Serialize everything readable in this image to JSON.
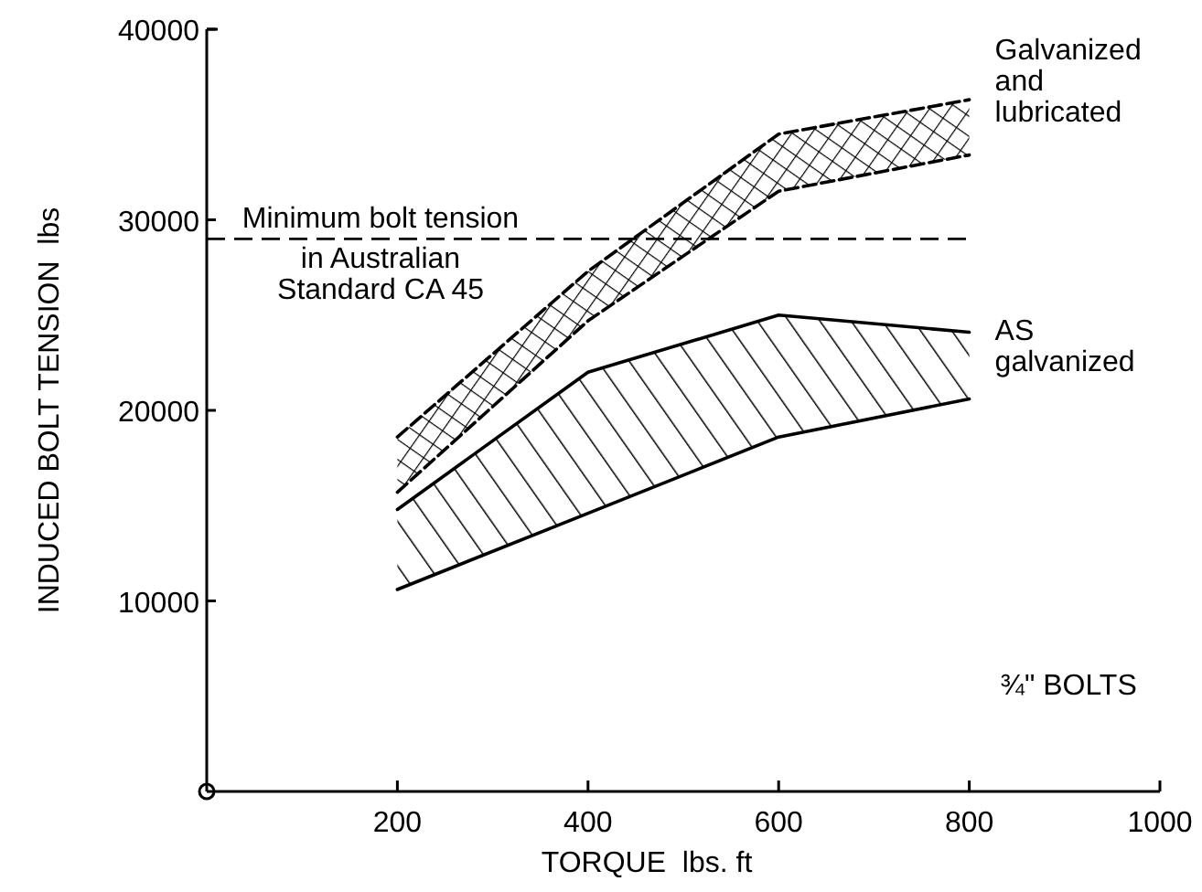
{
  "chart_data": {
    "type": "line",
    "xlabel": "TORQUE  lbs. ft",
    "ylabel": "INDUCED BOLT TENSION  lbs",
    "xlim": [
      0,
      1000
    ],
    "xticks": [
      200,
      400,
      600,
      800,
      1000
    ],
    "ylim": [
      0,
      40000
    ],
    "yticks": [
      10000,
      20000,
      30000,
      40000
    ],
    "grid": false,
    "legend": false,
    "marker": "none",
    "series": [
      {
        "name": "Galvanized and lubricated",
        "color": "#000000",
        "line_style": "dashed",
        "x": [
          200,
          400,
          600,
          800
        ],
        "values": [
          18600,
          27300,
          34500,
          36300
        ]
      },
      {
        "color": "#000000",
        "line_style": "dashed",
        "x": [
          200,
          400,
          600,
          800
        ],
        "values": [
          15700,
          24700,
          31500,
          33400
        ]
      },
      {
        "name": "AS galvanized",
        "color": "#000000",
        "line_style": "solid",
        "x": [
          200,
          400,
          600,
          800
        ],
        "values": [
          14800,
          22000,
          25000,
          24100
        ]
      },
      {
        "color": "#000000",
        "line_style": "solid",
        "x": [
          200,
          400,
          600,
          800
        ],
        "values": [
          10600,
          14600,
          18600,
          20600
        ]
      }
    ],
    "ref_lines": [
      {
        "axis": "y",
        "value": 29000,
        "label": "Minimum bolt tension in Australian Standard CA 45",
        "line_style": "dashed",
        "color": "#000000"
      }
    ],
    "annotations": [
      "¾\" BOLTS"
    ]
  }
}
